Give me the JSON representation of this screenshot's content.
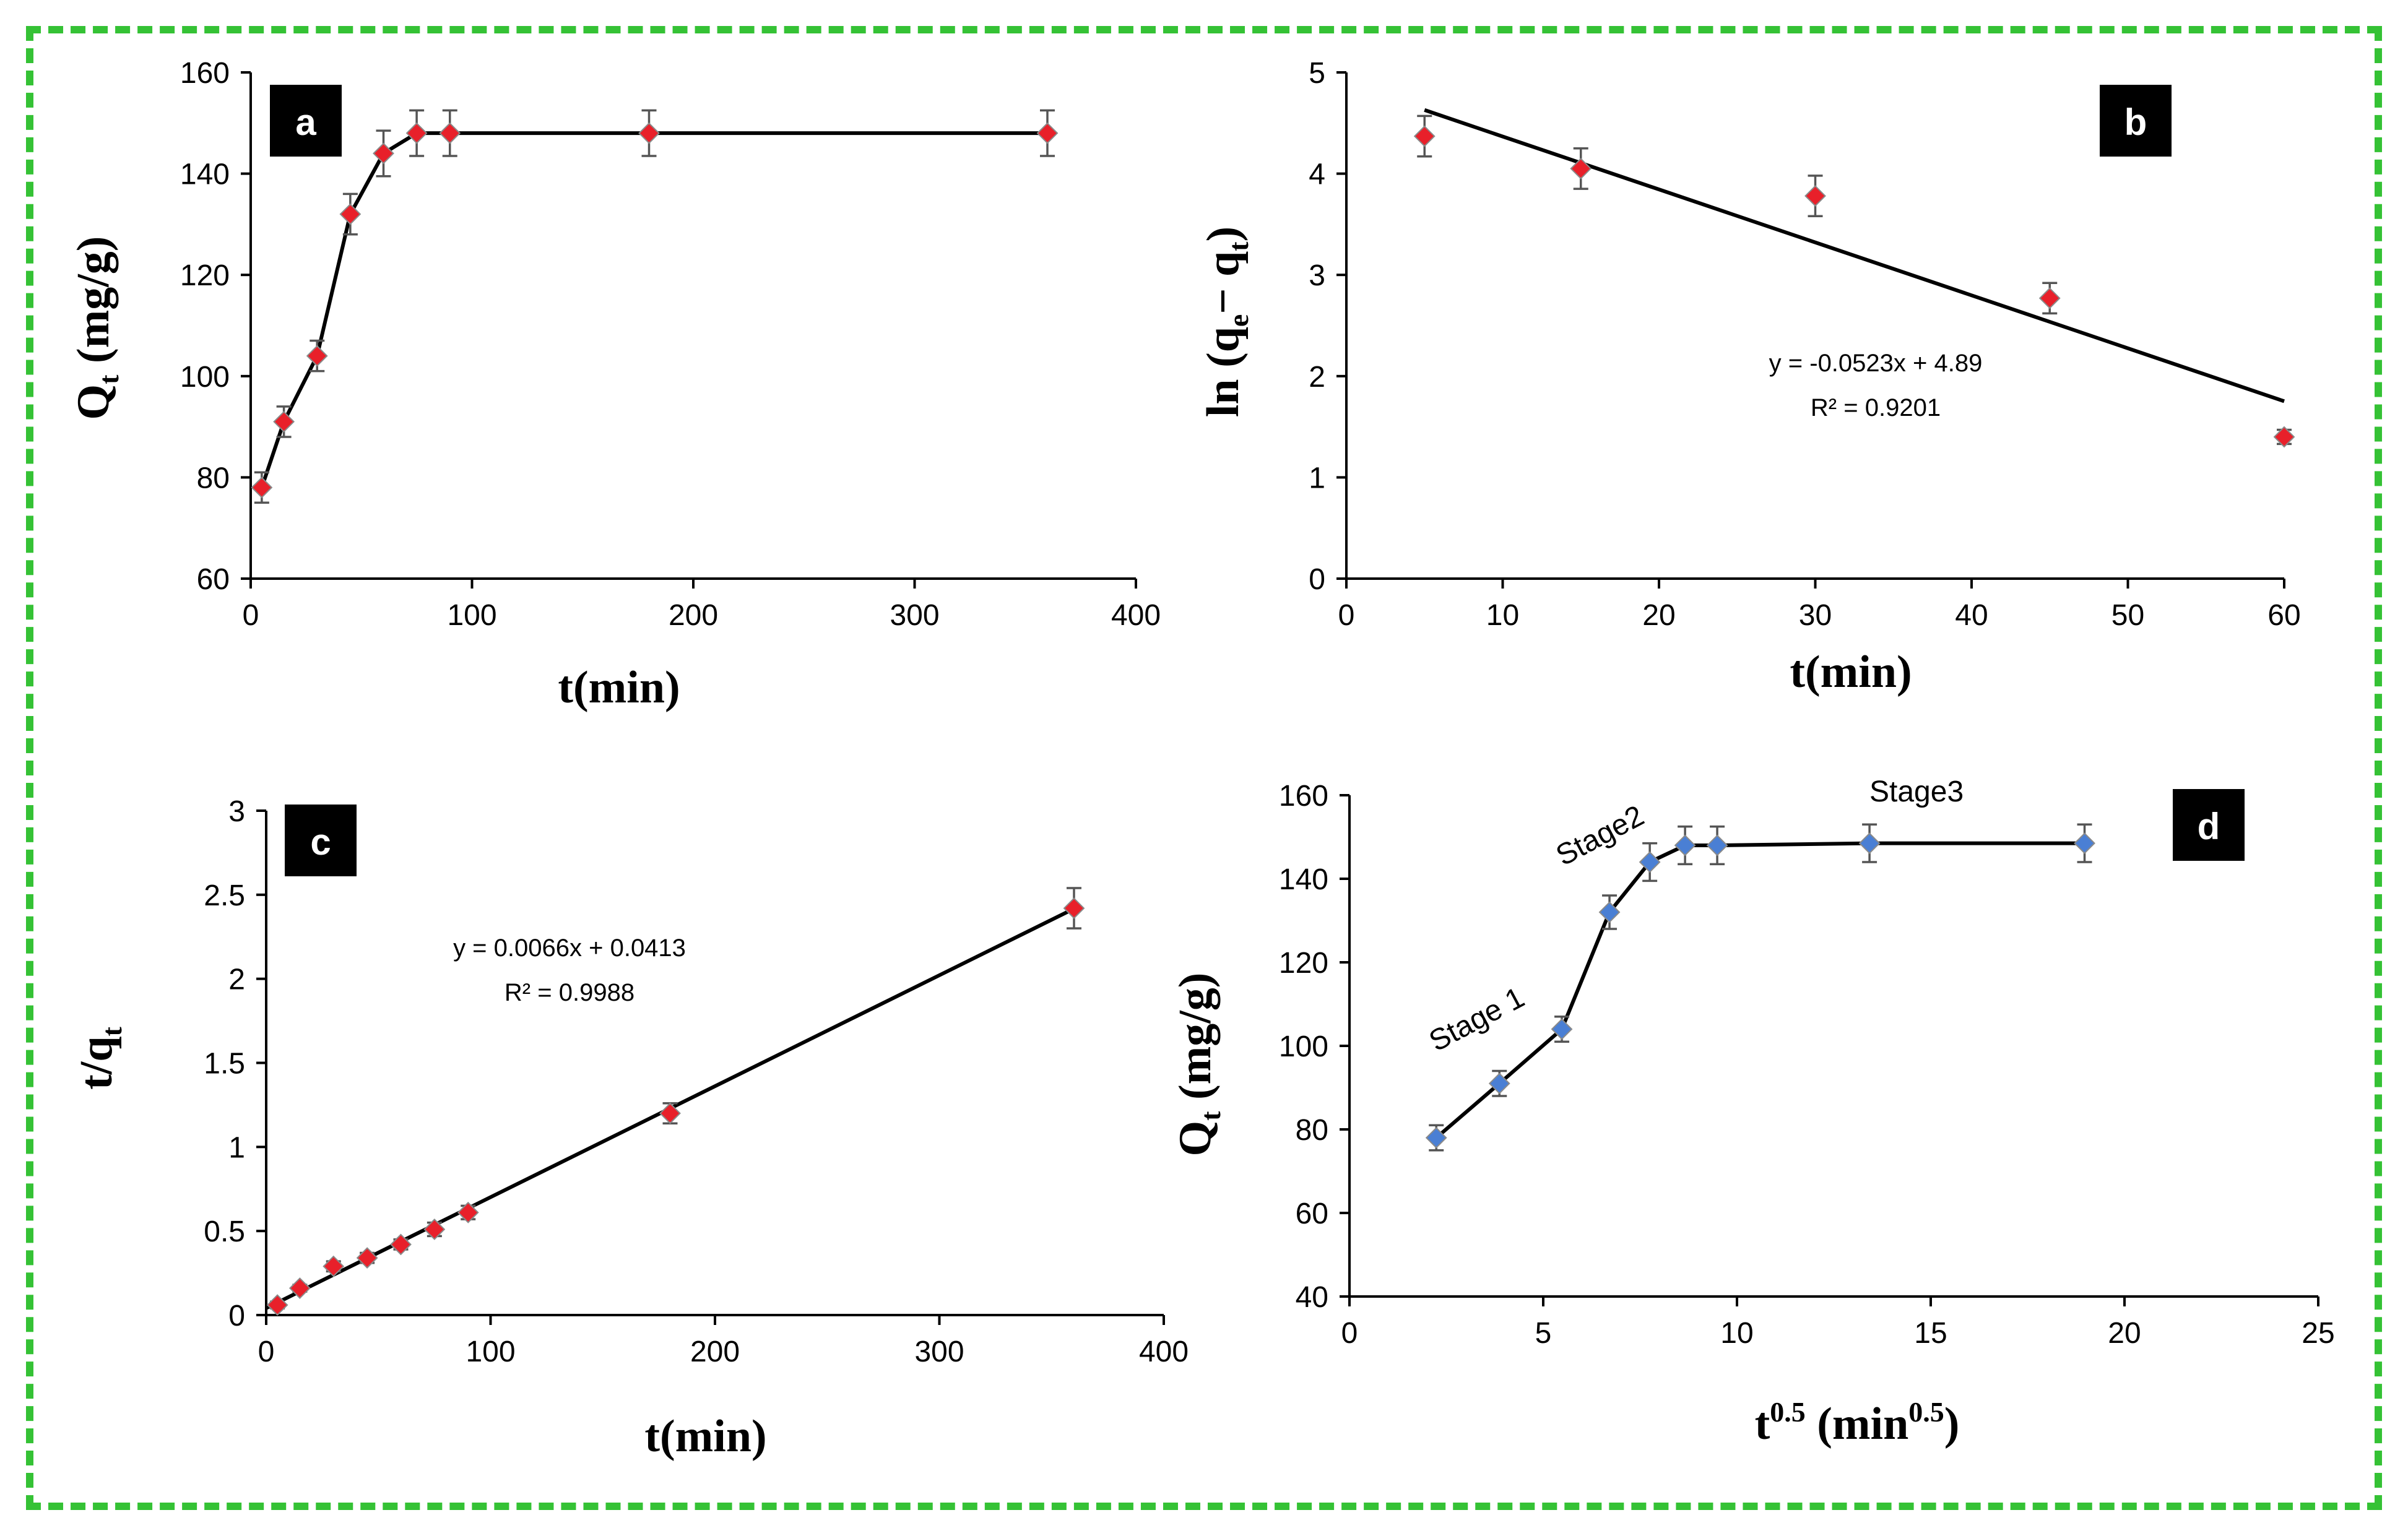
{
  "colors": {
    "border": "#35c235",
    "marker_red": "#e8202a",
    "marker_blue": "#4a7fd4",
    "errorbar": "#555555",
    "line": "#000000",
    "badge_bg": "#000000",
    "badge_fg": "#ffffff"
  },
  "chart_data": [
    {
      "id": "a",
      "type": "line",
      "panel_label": "a",
      "xlabel": "t(min)",
      "ylabel_main": "Q",
      "ylabel_sub": "t",
      "ylabel_rest": " (mg/g)",
      "xlim": [
        0,
        400
      ],
      "ylim": [
        60,
        160
      ],
      "xticks": [
        0,
        100,
        200,
        300,
        400
      ],
      "yticks": [
        60,
        80,
        100,
        120,
        140,
        160
      ],
      "marker": "red-diamond",
      "x": [
        5,
        15,
        30,
        45,
        60,
        75,
        90,
        180,
        360
      ],
      "y": [
        78,
        91,
        104,
        132,
        144,
        148,
        148,
        148,
        148
      ],
      "err": [
        3,
        3,
        3,
        4,
        4.5,
        4.5,
        4.5,
        4.5,
        4.5
      ],
      "line_mode": "connect",
      "equation": "",
      "r2": ""
    },
    {
      "id": "b",
      "type": "scatter",
      "panel_label": "b",
      "xlabel": "t(min)",
      "ylabel_main": "ln (q",
      "ylabel_sub": "e",
      "ylabel_rest": "− q",
      "ylabel_sub2": "t",
      "ylabel_end": ")",
      "xlim": [
        0,
        60
      ],
      "ylim": [
        0,
        5
      ],
      "xticks": [
        0,
        10,
        20,
        30,
        40,
        50,
        60
      ],
      "yticks": [
        0,
        1,
        2,
        3,
        4,
        5
      ],
      "marker": "red-diamond",
      "x": [
        5,
        15,
        30,
        45,
        60
      ],
      "y": [
        4.37,
        4.05,
        3.78,
        2.77,
        1.4
      ],
      "err": [
        0.2,
        0.2,
        0.2,
        0.15,
        0.07
      ],
      "line_mode": "fit",
      "fit": {
        "slope": -0.0523,
        "intercept": 4.89,
        "x_range": [
          5,
          60
        ]
      },
      "equation": "y = -0.0523x + 4.89",
      "r2": "R² = 0.9201"
    },
    {
      "id": "c",
      "type": "scatter",
      "panel_label": "c",
      "xlabel": "t(min)",
      "ylabel_main": "t/q",
      "ylabel_sub": "t",
      "ylabel_rest": "",
      "xlim": [
        0,
        400
      ],
      "ylim": [
        0,
        3
      ],
      "xticks": [
        0,
        100,
        200,
        300,
        400
      ],
      "yticks": [
        0,
        0.5,
        1,
        1.5,
        2,
        2.5,
        3
      ],
      "ytick_labels": [
        "0",
        "0.5",
        "1",
        "1.5",
        "2",
        "2.5",
        "3"
      ],
      "marker": "red-diamond",
      "x": [
        5,
        15,
        30,
        45,
        60,
        75,
        90,
        180,
        360
      ],
      "y": [
        0.06,
        0.16,
        0.29,
        0.34,
        0.42,
        0.51,
        0.61,
        1.2,
        2.42
      ],
      "err": [
        0.02,
        0.02,
        0.03,
        0.03,
        0.03,
        0.04,
        0.04,
        0.06,
        0.12
      ],
      "line_mode": "fit",
      "fit": {
        "slope": 0.0066,
        "intercept": 0.0413,
        "x_range": [
          0,
          360
        ]
      },
      "equation": "y = 0.0066x + 0.0413",
      "r2": "R² = 0.9988"
    },
    {
      "id": "d",
      "type": "line",
      "panel_label": "d",
      "xlabel_main": "t",
      "xlabel_sup": "0.5",
      "xlabel_rest": " (min",
      "xlabel_sup2": "0.5",
      "xlabel_end": ")",
      "ylabel_main": "Q",
      "ylabel_sub": "t",
      "ylabel_rest": " (mg/g)",
      "xlim": [
        0,
        25
      ],
      "ylim": [
        40,
        160
      ],
      "xticks": [
        0,
        5,
        10,
        15,
        20,
        25
      ],
      "yticks": [
        40,
        60,
        80,
        100,
        120,
        140,
        160
      ],
      "marker": "blue-diamond",
      "x": [
        2.24,
        3.87,
        5.48,
        6.71,
        7.75,
        8.66,
        9.49,
        13.42,
        18.97
      ],
      "y": [
        78,
        91,
        104,
        132,
        144,
        148,
        148,
        148.5,
        148.5
      ],
      "err": [
        3,
        3,
        3,
        4,
        4.5,
        4.5,
        4.5,
        4.5,
        4.5
      ],
      "line_mode": "connect",
      "stages": [
        "Stage 1",
        "Stage2",
        "Stage3"
      ],
      "equation": "",
      "r2": ""
    }
  ]
}
